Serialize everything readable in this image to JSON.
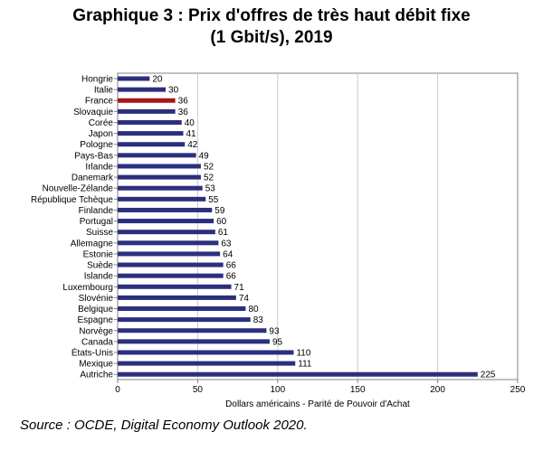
{
  "title": {
    "line1": "Graphique 3 : Prix d'offres de très haut débit fixe",
    "line2": "(1 Gbit/s), 2019"
  },
  "source": "Source : OCDE, Digital Economy Outlook 2020.",
  "chart_data": {
    "type": "bar",
    "orientation": "horizontal",
    "title": "Graphique 3 : Prix d'offres de très haut débit fixe (1 Gbit/s), 2019",
    "xlabel": "Dollars américains - Parité de Pouvoir d'Achat",
    "ylabel": "",
    "xlim": [
      0,
      250
    ],
    "ticks": [
      0,
      50,
      100,
      150,
      200,
      250
    ],
    "grid": true,
    "categories": [
      "Hongrie",
      "Italie",
      "France",
      "Slovaquie",
      "Corée",
      "Japon",
      "Pologne",
      "Pays-Bas",
      "Irlande",
      "Danemark",
      "Nouvelle-Zélande",
      "République Tchèque",
      "Finlande",
      "Portugal",
      "Suisse",
      "Allemagne",
      "Estonie",
      "Suède",
      "Islande",
      "Luxembourg",
      "Slovénie",
      "Belgique",
      "Espagne",
      "Norvège",
      "Canada",
      "États-Unis",
      "Mexique",
      "Autriche"
    ],
    "values": [
      20,
      30,
      36,
      36,
      40,
      41,
      42,
      49,
      52,
      52,
      53,
      55,
      59,
      60,
      61,
      63,
      64,
      66,
      66,
      71,
      74,
      80,
      83,
      93,
      95,
      110,
      111,
      225
    ],
    "highlight": "France",
    "colors": {
      "bar": "#2b2f7e",
      "highlight": "#a8161b",
      "grid": "#c8c8c8",
      "axis": "#808080"
    }
  }
}
